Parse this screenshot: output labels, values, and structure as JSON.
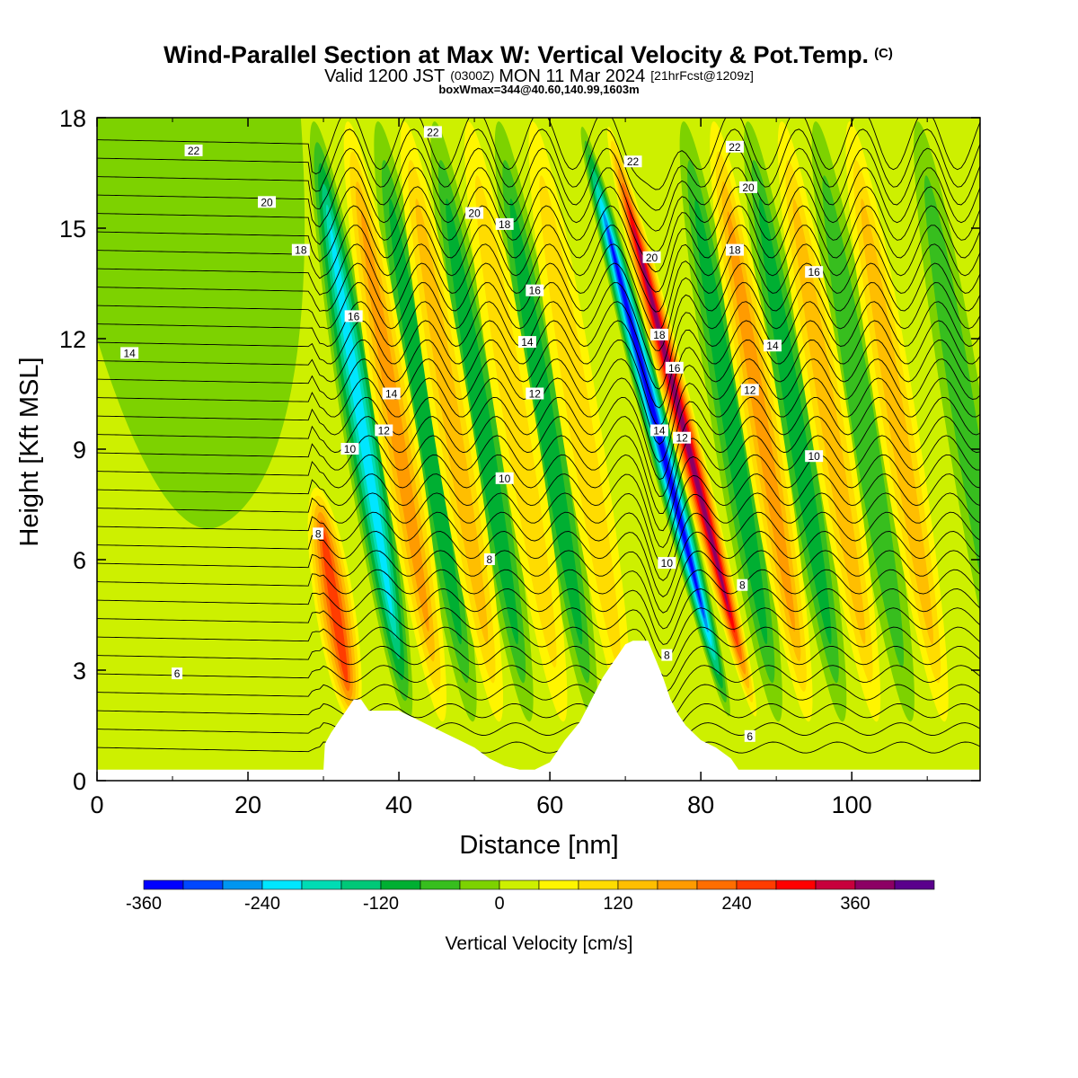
{
  "header": {
    "title_main": "Wind-Parallel Section at Max W: Vertical Velocity & Pot.Temp.",
    "title_mark": "(C)",
    "valid_prefix": "Valid 1200 JST",
    "valid_utc": "(0300Z)",
    "valid_date": "MON 11 Mar 2024",
    "valid_fcst": "[21hrFcst@1209z]",
    "box_info": "boxWmax=344@40.60,140.99,1603m"
  },
  "colors": {
    "terrain": "#ffffff",
    "contour": "#000000",
    "accent_updraft": "#ff0000",
    "accent_downdraft": "#0000ff"
  },
  "chart_data": {
    "type": "heatmap",
    "xlabel": "Distance [nm]",
    "ylabel": "Height [Kft MSL]",
    "xlim": [
      0,
      117
    ],
    "ylim": [
      0,
      18
    ],
    "x_ticks": [
      0,
      20,
      40,
      60,
      80,
      100
    ],
    "y_ticks": [
      0,
      3,
      6,
      9,
      12,
      15,
      18
    ],
    "colorbar": {
      "label": "Vertical Velocity [cm/s]",
      "ticks": [
        -360,
        -240,
        -120,
        0,
        120,
        240,
        360
      ],
      "bins": [
        {
          "value": -360,
          "color": "#0000ff"
        },
        {
          "value": -320,
          "color": "#0047ff"
        },
        {
          "value": -280,
          "color": "#0096f0"
        },
        {
          "value": -240,
          "color": "#00e6ff"
        },
        {
          "value": -200,
          "color": "#00dcb4"
        },
        {
          "value": -160,
          "color": "#00c878"
        },
        {
          "value": -120,
          "color": "#00af32"
        },
        {
          "value": -80,
          "color": "#37be1e"
        },
        {
          "value": -40,
          "color": "#7dd200"
        },
        {
          "value": 0,
          "color": "#cdf000"
        },
        {
          "value": 40,
          "color": "#fff500"
        },
        {
          "value": 80,
          "color": "#ffdc00"
        },
        {
          "value": 120,
          "color": "#ffbe00"
        },
        {
          "value": 160,
          "color": "#ff9b00"
        },
        {
          "value": 200,
          "color": "#ff6e00"
        },
        {
          "value": 240,
          "color": "#ff3c00"
        },
        {
          "value": 280,
          "color": "#ff0000"
        },
        {
          "value": 320,
          "color": "#c8003c"
        },
        {
          "value": 360,
          "color": "#8c0064"
        },
        {
          "value": 400,
          "color": "#5a008c"
        }
      ]
    },
    "terrain_profile": {
      "x": [
        0,
        30,
        30.2,
        31,
        32,
        33,
        34,
        35,
        36,
        37,
        38,
        40,
        42,
        44,
        46,
        48,
        50,
        52,
        54,
        56,
        58,
        60,
        61,
        62,
        64,
        65,
        66,
        67,
        68,
        69,
        70,
        71,
        72,
        73,
        74,
        75,
        76,
        77,
        78,
        79,
        80,
        82,
        84,
        85,
        86,
        100,
        117
      ],
      "y": [
        0.3,
        0.3,
        1.0,
        1.3,
        1.6,
        1.9,
        2.2,
        2.2,
        1.9,
        1.9,
        1.9,
        1.9,
        1.7,
        1.5,
        1.3,
        1.1,
        0.9,
        0.6,
        0.4,
        0.3,
        0.3,
        0.5,
        0.8,
        1.1,
        1.6,
        2.0,
        2.4,
        2.8,
        3.1,
        3.4,
        3.7,
        3.8,
        3.8,
        3.8,
        3.3,
        2.8,
        2.2,
        1.8,
        1.5,
        1.3,
        1.1,
        0.9,
        0.6,
        0.3,
        0.3,
        0.3,
        0.3
      ]
    },
    "updraft_bands": [
      {
        "x_center": 31.5,
        "w_max": 240,
        "z_top": 8
      },
      {
        "x_center": 39.5,
        "w_max": 170,
        "z_top": 18
      },
      {
        "x_center": 47,
        "w_max": 110,
        "z_top": 18
      },
      {
        "x_center": 55.5,
        "w_max": 90,
        "z_top": 18
      },
      {
        "x_center": 64,
        "w_max": 80,
        "z_top": 18
      },
      {
        "x_center": 77.5,
        "w_max": 344,
        "z_top": 18
      },
      {
        "x_center": 88,
        "w_max": 140,
        "z_top": 18
      },
      {
        "x_center": 97,
        "w_max": 120,
        "z_top": 18
      },
      {
        "x_center": 106,
        "w_max": 110,
        "z_top": 18
      }
    ],
    "downdraft_bands": [
      {
        "x_center": 35,
        "w_min": -240,
        "z_top": 18
      },
      {
        "x_center": 43.5,
        "w_min": -120,
        "z_top": 18
      },
      {
        "x_center": 51,
        "w_min": -110,
        "z_top": 18
      },
      {
        "x_center": 59.5,
        "w_min": -100,
        "z_top": 18
      },
      {
        "x_center": 74,
        "w_min": -360,
        "z_top": 18
      },
      {
        "x_center": 84,
        "w_min": -120,
        "z_top": 18
      },
      {
        "x_center": 92.5,
        "w_min": -100,
        "z_top": 18
      },
      {
        "x_center": 101.5,
        "w_min": -90,
        "z_top": 18
      },
      {
        "x_center": 115,
        "w_min": -60,
        "z_top": 18
      }
    ],
    "theta_contour_labels": [
      {
        "text": "22",
        "x": 12.8,
        "y": 17.1
      },
      {
        "text": "20",
        "x": 22.5,
        "y": 15.7
      },
      {
        "text": "18",
        "x": 27,
        "y": 14.4
      },
      {
        "text": "14",
        "x": 4.3,
        "y": 11.6
      },
      {
        "text": "16",
        "x": 34,
        "y": 12.6
      },
      {
        "text": "14",
        "x": 39,
        "y": 10.5
      },
      {
        "text": "12",
        "x": 38,
        "y": 9.5
      },
      {
        "text": "10",
        "x": 33.5,
        "y": 9
      },
      {
        "text": "8",
        "x": 29.3,
        "y": 6.7
      },
      {
        "text": "6",
        "x": 10.6,
        "y": 2.9
      },
      {
        "text": "22",
        "x": 44.5,
        "y": 17.6
      },
      {
        "text": "20",
        "x": 50,
        "y": 15.4
      },
      {
        "text": "18",
        "x": 54,
        "y": 15.1
      },
      {
        "text": "16",
        "x": 58,
        "y": 13.3
      },
      {
        "text": "14",
        "x": 57,
        "y": 11.9
      },
      {
        "text": "12",
        "x": 58,
        "y": 10.5
      },
      {
        "text": "10",
        "x": 54,
        "y": 8.2
      },
      {
        "text": "8",
        "x": 52,
        "y": 6
      },
      {
        "text": "22",
        "x": 71,
        "y": 16.8
      },
      {
        "text": "20",
        "x": 73.5,
        "y": 14.2
      },
      {
        "text": "18",
        "x": 74.5,
        "y": 12.1
      },
      {
        "text": "16",
        "x": 76.5,
        "y": 11.2
      },
      {
        "text": "14",
        "x": 74.5,
        "y": 9.5
      },
      {
        "text": "12",
        "x": 77.5,
        "y": 9.3
      },
      {
        "text": "10",
        "x": 75.5,
        "y": 5.9
      },
      {
        "text": "8",
        "x": 75.5,
        "y": 3.4
      },
      {
        "text": "22",
        "x": 84.5,
        "y": 17.2
      },
      {
        "text": "20",
        "x": 86.3,
        "y": 16.1
      },
      {
        "text": "18",
        "x": 84.5,
        "y": 14.4
      },
      {
        "text": "16",
        "x": 95,
        "y": 13.8
      },
      {
        "text": "14",
        "x": 89.5,
        "y": 11.8
      },
      {
        "text": "12",
        "x": 86.5,
        "y": 10.6
      },
      {
        "text": "10",
        "x": 95,
        "y": 8.8
      },
      {
        "text": "8",
        "x": 85.5,
        "y": 5.3
      },
      {
        "text": "6",
        "x": 86.5,
        "y": 1.2
      }
    ]
  }
}
